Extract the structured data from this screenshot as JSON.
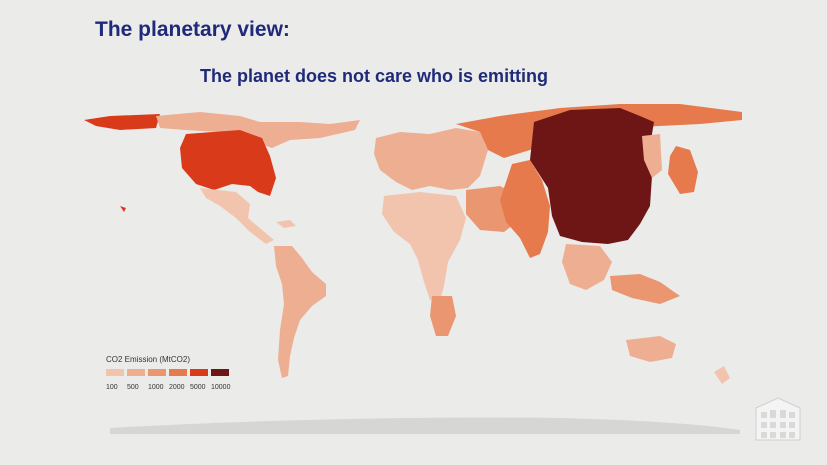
{
  "slide": {
    "title": "The planetary view:",
    "subtitle": "The planet does not care who is emitting"
  },
  "legend": {
    "title": "CO2 Emission (MtCO2)",
    "items": [
      {
        "label": "100",
        "color": "#f2c4ae"
      },
      {
        "label": "500",
        "color": "#eeae92"
      },
      {
        "label": "1000",
        "color": "#ea9670"
      },
      {
        "label": "2000",
        "color": "#e67a4c"
      },
      {
        "label": "5000",
        "color": "#d83a1a"
      },
      {
        "label": "10000",
        "color": "#6e1616"
      }
    ]
  },
  "colors": {
    "background": "#ebebea",
    "title": "#1f2a7a",
    "land_base": "#f2c4ae",
    "ocean_shadow": "#d6d6d4"
  },
  "map_regions": [
    {
      "name": "china",
      "emission_class": "10000"
    },
    {
      "name": "united-states",
      "emission_class": "5000"
    },
    {
      "name": "india",
      "emission_class": "2000"
    },
    {
      "name": "russia",
      "emission_class": "1000"
    },
    {
      "name": "japan",
      "emission_class": "1000"
    },
    {
      "name": "europe",
      "emission_class": "500"
    },
    {
      "name": "middle-east",
      "emission_class": "500"
    },
    {
      "name": "south-america",
      "emission_class": "500"
    },
    {
      "name": "africa",
      "emission_class": "100"
    },
    {
      "name": "australia",
      "emission_class": "500"
    }
  ]
}
